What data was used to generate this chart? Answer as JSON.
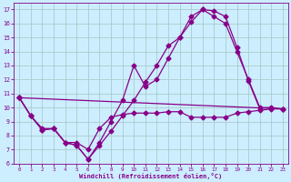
{
  "xlabel": "Windchill (Refroidissement éolien,°C)",
  "bg_color": "#cceeff",
  "grid_color": "#aacccc",
  "line_color": "#880088",
  "xlim": [
    -0.5,
    23.5
  ],
  "ylim": [
    6,
    17.5
  ],
  "xticks": [
    0,
    1,
    2,
    3,
    4,
    5,
    6,
    7,
    8,
    9,
    10,
    11,
    12,
    13,
    14,
    15,
    16,
    17,
    18,
    19,
    20,
    21,
    22,
    23
  ],
  "yticks": [
    6,
    7,
    8,
    9,
    10,
    11,
    12,
    13,
    14,
    15,
    16,
    17
  ],
  "series": [
    {
      "x": [
        0,
        1,
        2,
        3,
        4,
        5,
        6,
        7,
        8,
        9,
        10,
        11,
        12,
        13,
        14,
        15,
        16,
        17,
        18,
        19,
        20,
        21
      ],
      "y": [
        10.7,
        9.4,
        8.4,
        8.5,
        7.5,
        7.3,
        6.3,
        7.3,
        8.3,
        9.4,
        10.5,
        11.8,
        13.0,
        14.4,
        15.0,
        16.1,
        17.0,
        16.9,
        16.5,
        14.3,
        11.9,
        9.9
      ]
    },
    {
      "x": [
        0,
        1,
        2,
        3,
        4,
        5,
        6,
        7,
        8,
        9,
        10,
        11,
        12,
        13,
        14,
        15,
        16,
        17,
        18,
        19,
        20,
        21,
        22,
        23
      ],
      "y": [
        10.7,
        9.4,
        8.5,
        8.5,
        7.5,
        7.5,
        7.0,
        8.5,
        9.3,
        9.5,
        9.6,
        9.6,
        9.6,
        9.7,
        9.7,
        9.3,
        9.3,
        9.3,
        9.3,
        9.6,
        9.7,
        9.8,
        9.9,
        9.9
      ]
    },
    {
      "x": [
        0,
        1,
        2,
        3,
        4,
        5,
        6,
        7,
        8,
        9,
        10,
        11,
        12,
        13,
        14,
        15,
        16,
        17,
        18,
        19,
        20,
        21,
        22,
        23
      ],
      "y": [
        10.7,
        9.4,
        8.4,
        8.5,
        7.5,
        7.3,
        6.3,
        7.5,
        9.0,
        10.5,
        13.0,
        11.5,
        12.0,
        13.5,
        15.0,
        16.5,
        17.0,
        16.5,
        16.0,
        14.0,
        12.0,
        10.0,
        10.0,
        9.9
      ]
    },
    {
      "x": [
        0,
        23
      ],
      "y": [
        10.7,
        9.9
      ]
    }
  ],
  "marker": "D",
  "markersize": 2.5,
  "linewidth": 0.9
}
